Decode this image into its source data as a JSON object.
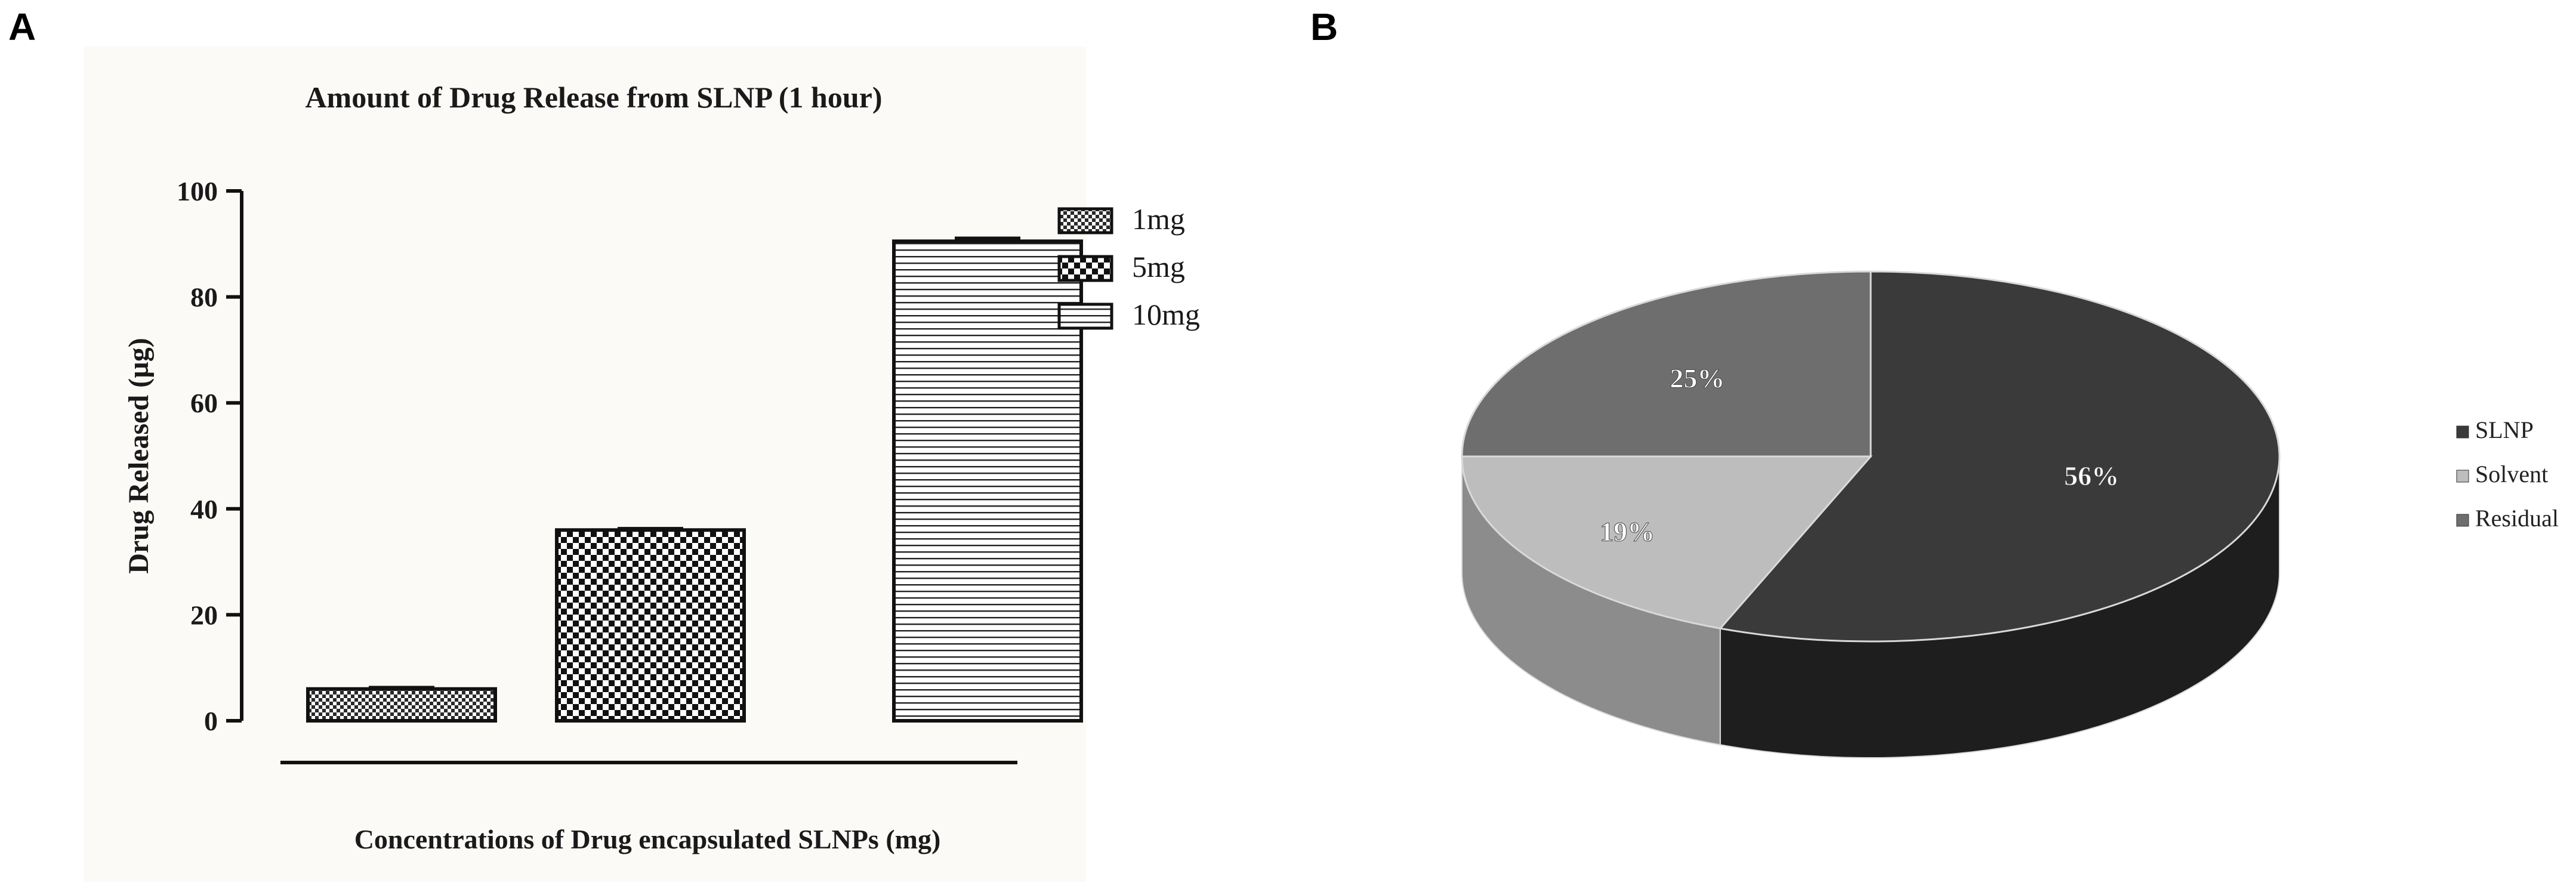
{
  "panels": [
    {
      "letter": "A"
    },
    {
      "letter": "B"
    }
  ],
  "chart_data": [
    {
      "type": "bar",
      "title": "Amount of Drug Release from SLNP (1 hour)",
      "xlabel": "Concentrations of Drug encapsulated SLNPs (mg)",
      "ylabel": "Drug Released (µg)",
      "categories": [
        "1mg",
        "5mg",
        "10mg"
      ],
      "values": [
        6,
        36,
        90.5
      ],
      "error": [
        0.3,
        0.3,
        0.6
      ],
      "ylim": [
        0,
        100
      ],
      "yticks": [
        "0",
        "20",
        "40",
        "60",
        "80",
        "100"
      ],
      "legend": [
        "1mg",
        "5mg",
        "10mg"
      ],
      "legend_position": "right",
      "patterns": [
        "fine-checker",
        "checker",
        "horizontal-lines"
      ],
      "grid": false
    },
    {
      "type": "pie",
      "labels": [
        "SLNP",
        "Solvent",
        "Residual"
      ],
      "values": [
        56,
        19,
        25
      ],
      "value_labels": [
        "56%",
        "19%",
        "25%"
      ],
      "colors": [
        "#3a3a3a",
        "#bdbdbd",
        "#6e6e6e"
      ],
      "side_colors": [
        "#1e1e1e",
        "#8c8c8c",
        "#4a4a4a"
      ],
      "style": "3d",
      "legend_position": "right"
    }
  ]
}
